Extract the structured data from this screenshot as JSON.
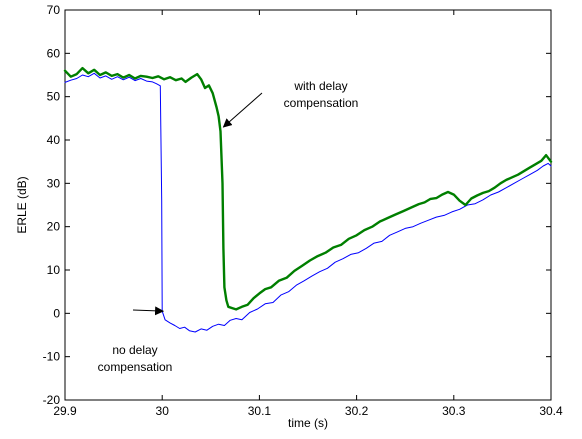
{
  "chart_data": {
    "type": "line",
    "title": "",
    "xlabel": "time (s)",
    "ylabel": "ERLE (dB)",
    "xlim": [
      29.9,
      30.4
    ],
    "ylim": [
      -20,
      70
    ],
    "xticks": [
      "29.9",
      "30",
      "30.1",
      "30.2",
      "30.3",
      "30.4"
    ],
    "yticks": [
      "-20",
      "-10",
      "0",
      "10",
      "20",
      "30",
      "40",
      "50",
      "60",
      "70"
    ],
    "grid": false,
    "legend": "none",
    "series": [
      {
        "color": "#0000ff",
        "linewidth_hint": "thin",
        "x": [
          29.9,
          29.906,
          29.912,
          29.918,
          29.924,
          29.93,
          29.936,
          29.942,
          29.948,
          29.954,
          29.96,
          29.966,
          29.972,
          29.978,
          29.984,
          29.99,
          29.994,
          29.998,
          29.9995,
          30.0,
          30.003,
          30.008,
          30.013,
          30.018,
          30.023,
          30.028,
          30.034,
          30.04,
          30.046,
          30.052,
          30.058,
          30.064,
          30.07,
          30.076,
          30.082,
          30.09,
          30.098,
          30.106,
          30.114,
          30.122,
          30.13,
          30.138,
          30.146,
          30.154,
          30.162,
          30.17,
          30.178,
          30.186,
          30.194,
          30.202,
          30.21,
          30.218,
          30.226,
          30.234,
          30.242,
          30.25,
          30.258,
          30.266,
          30.274,
          30.282,
          30.29,
          30.298,
          30.306,
          30.314,
          30.322,
          30.33,
          30.338,
          30.346,
          30.354,
          30.362,
          30.37,
          30.378,
          30.386,
          30.392,
          30.397,
          30.4
        ],
        "y": [
          53.3,
          53.8,
          54.2,
          55.0,
          54.6,
          55.4,
          54.3,
          54.8,
          54.0,
          54.6,
          53.9,
          54.5,
          53.7,
          54.2,
          53.6,
          53.4,
          53.0,
          52.5,
          26.0,
          0.5,
          -1.5,
          -2.2,
          -2.8,
          -3.5,
          -3.2,
          -4.0,
          -4.3,
          -3.6,
          -3.9,
          -3.0,
          -2.5,
          -2.8,
          -1.6,
          -1.2,
          -1.5,
          0.2,
          1.0,
          2.2,
          2.5,
          4.2,
          5.0,
          6.5,
          7.5,
          8.6,
          9.6,
          10.4,
          11.8,
          12.6,
          13.6,
          14.0,
          15.0,
          16.2,
          16.6,
          18.0,
          18.8,
          19.6,
          20.0,
          20.8,
          21.5,
          22.2,
          22.6,
          23.4,
          24.0,
          25.0,
          25.3,
          26.2,
          27.3,
          28.0,
          29.0,
          30.0,
          31.0,
          32.0,
          33.0,
          34.0,
          34.6,
          34.0
        ]
      },
      {
        "color": "#007f00",
        "linewidth_hint": "thick",
        "x": [
          29.9,
          29.906,
          29.912,
          29.918,
          29.924,
          29.93,
          29.936,
          29.942,
          29.948,
          29.954,
          29.96,
          29.966,
          29.972,
          29.978,
          29.984,
          29.99,
          29.996,
          30.002,
          30.008,
          30.014,
          30.02,
          30.024,
          30.03,
          30.036,
          30.04,
          30.044,
          30.048,
          30.052,
          30.056,
          30.058,
          30.06,
          30.062,
          30.063,
          30.064,
          30.065,
          30.066,
          30.068,
          30.072,
          30.076,
          30.082,
          30.088,
          30.094,
          30.1,
          30.106,
          30.112,
          30.12,
          30.128,
          30.136,
          30.144,
          30.152,
          30.16,
          30.168,
          30.176,
          30.184,
          30.192,
          30.2,
          30.208,
          30.216,
          30.224,
          30.232,
          30.24,
          30.248,
          30.256,
          30.264,
          30.27,
          30.276,
          30.282,
          30.288,
          30.294,
          30.3,
          30.306,
          30.312,
          30.318,
          30.324,
          30.33,
          30.336,
          30.342,
          30.348,
          30.354,
          30.36,
          30.366,
          30.372,
          30.378,
          30.384,
          30.39,
          30.395,
          30.4
        ],
        "y": [
          56.0,
          54.6,
          55.2,
          56.6,
          55.4,
          56.2,
          55.0,
          55.6,
          54.8,
          55.2,
          54.4,
          55.0,
          54.2,
          54.8,
          54.6,
          54.3,
          54.7,
          54.0,
          54.5,
          53.8,
          54.2,
          53.4,
          54.4,
          55.2,
          54.0,
          52.0,
          52.6,
          50.8,
          47.5,
          45.5,
          42.0,
          30.0,
          15.0,
          6.0,
          4.5,
          3.0,
          1.5,
          1.2,
          0.9,
          1.5,
          2.0,
          3.5,
          4.6,
          5.6,
          6.0,
          7.5,
          8.2,
          9.8,
          11.0,
          12.2,
          13.2,
          14.0,
          15.2,
          15.8,
          17.2,
          18.0,
          19.2,
          20.0,
          21.2,
          22.0,
          22.8,
          23.6,
          24.4,
          25.2,
          25.6,
          26.4,
          26.6,
          27.4,
          28.0,
          27.4,
          26.0,
          25.0,
          26.5,
          27.2,
          27.8,
          28.2,
          29.0,
          30.0,
          30.8,
          31.4,
          32.0,
          32.8,
          33.6,
          34.4,
          35.2,
          36.5,
          35.0
        ]
      }
    ],
    "annotations": [
      {
        "lines": [
          "with delay",
          "compensation"
        ],
        "arrow_to": {
          "x": 30.063,
          "y": 43.0
        }
      },
      {
        "lines": [
          "no delay",
          "compensation"
        ],
        "arrow_to": {
          "x": 30.001,
          "y": 0.5
        }
      }
    ]
  }
}
